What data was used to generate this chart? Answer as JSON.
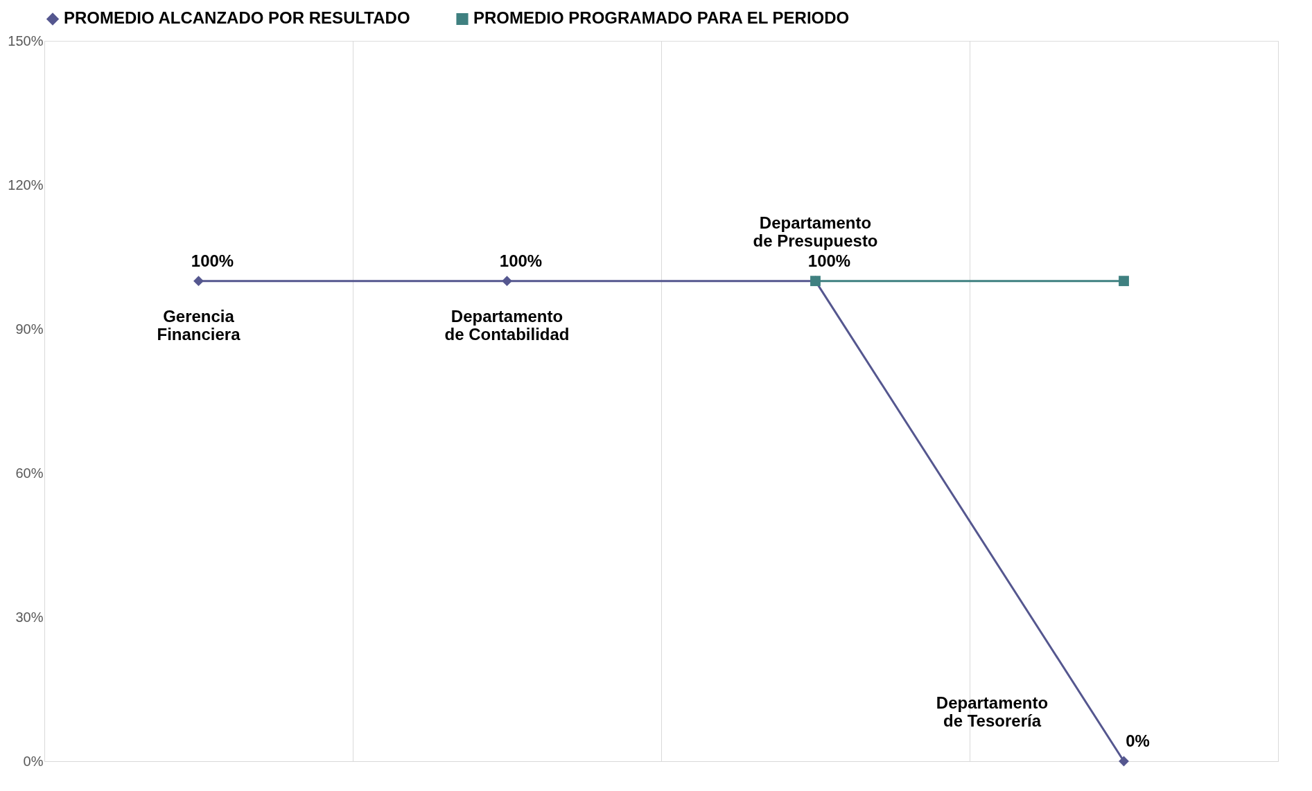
{
  "chart_data": {
    "type": "line",
    "categories": [
      "Gerencia Financiera",
      "Departamento de Contabilidad",
      "Departamento de Presupuesto",
      "Departamento de Tesorería"
    ],
    "series": [
      {
        "name": "PROMEDIO ALCANZADO POR RESULTADO",
        "color": "#55578f",
        "marker": "diamond",
        "values": [
          100,
          100,
          100,
          0
        ],
        "value_labels": [
          "100%",
          "100%",
          "100%",
          "0%"
        ]
      },
      {
        "name": "PROMEDIO PROGRAMADO PARA EL PERIODO",
        "color": "#3f8080",
        "marker": "square",
        "values": [
          null,
          null,
          100,
          100
        ]
      }
    ],
    "ylim": [
      0,
      150
    ],
    "yticks": [
      {
        "value": 0,
        "label": "0%"
      },
      {
        "value": 30,
        "label": "30%"
      },
      {
        "value": 60,
        "label": "60%"
      },
      {
        "value": 90,
        "label": "90%"
      },
      {
        "value": 120,
        "label": "120%"
      },
      {
        "value": 150,
        "label": "150%"
      }
    ],
    "grid": "x",
    "legend": "top",
    "line_style": "solid"
  }
}
